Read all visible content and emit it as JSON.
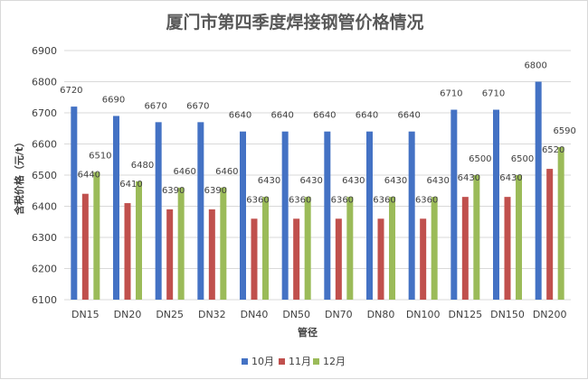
{
  "chart_data": {
    "type": "bar",
    "title": "厦门市第四季度焊接钢管价格情况",
    "xlabel": "管径",
    "ylabel": "含税价格（元/t）",
    "ylim": [
      6100,
      6900
    ],
    "ytick_step": 100,
    "yticks": [
      "6100",
      "6200",
      "6300",
      "6400",
      "6500",
      "6600",
      "6700",
      "6800",
      "6900"
    ],
    "grid": true,
    "legend_position": "bottom",
    "categories": [
      "DN15",
      "DN20",
      "DN25",
      "DN32",
      "DN40",
      "DN50",
      "DN70",
      "DN80",
      "DN100",
      "DN125",
      "DN150",
      "DN200"
    ],
    "series": [
      {
        "name": "10月",
        "color": "#4472c4",
        "values": [
          6720,
          6690,
          6670,
          6670,
          6640,
          6640,
          6640,
          6640,
          6640,
          6710,
          6710,
          6800
        ]
      },
      {
        "name": "11月",
        "color": "#c0504d",
        "values": [
          6440,
          6410,
          6390,
          6390,
          6360,
          6360,
          6360,
          6360,
          6360,
          6430,
          6430,
          6520
        ]
      },
      {
        "name": "12月",
        "color": "#9bbb59",
        "values": [
          6510,
          6480,
          6460,
          6460,
          6430,
          6430,
          6430,
          6430,
          6430,
          6500,
          6500,
          6590
        ]
      }
    ]
  }
}
